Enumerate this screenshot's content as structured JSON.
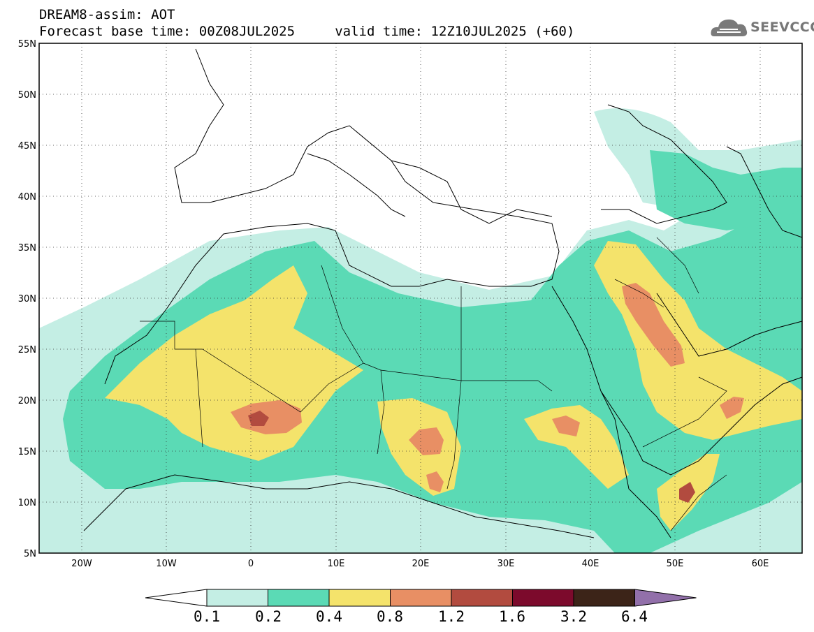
{
  "title": {
    "line1": "DREAM8-assim: AOT",
    "line2": "Forecast base time: 00Z08JUL2025     valid time: 12Z10JUL2025 (+60)"
  },
  "logo": {
    "text": "SEEVCCC",
    "icon": "cloud-icon"
  },
  "map": {
    "lon_range": [
      -25,
      65
    ],
    "lat_range": [
      5,
      55
    ],
    "lat_labels": [
      "5N",
      "10N",
      "15N",
      "20N",
      "25N",
      "30N",
      "35N",
      "40N",
      "45N",
      "50N",
      "55N"
    ],
    "lon_labels": [
      "20W",
      "10W",
      "0",
      "10E",
      "20E",
      "30E",
      "40E",
      "50E",
      "60E"
    ],
    "grid": "dotted",
    "variable": "AOT"
  },
  "legend": {
    "levels": [
      "0.1",
      "0.2",
      "0.4",
      "0.8",
      "1.2",
      "1.6",
      "3.2",
      "6.4"
    ],
    "colors": [
      "#c4eee4",
      "#5bdab5",
      "#f4e36b",
      "#e88f64",
      "#b24b3f",
      "#7c0a2c",
      "#3c2418",
      "#9270aa"
    ]
  }
}
